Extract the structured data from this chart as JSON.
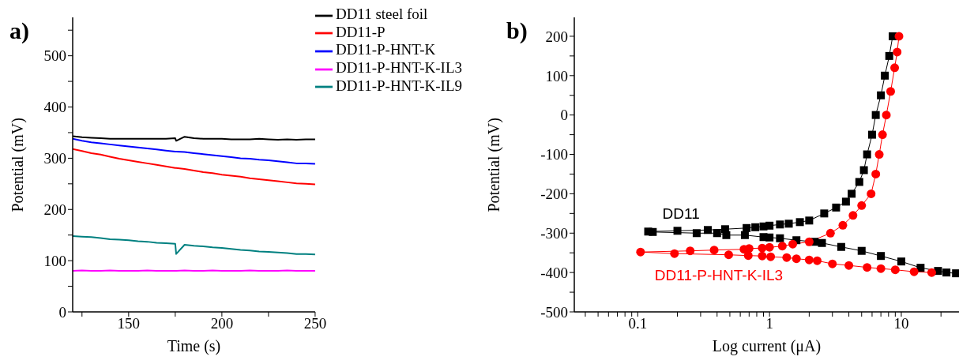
{
  "chart_data": [
    {
      "type": "line",
      "title": "a)",
      "xlabel": "Time (s)",
      "ylabel": "Potential (mV)",
      "legend": "top right",
      "x": [
        120,
        125,
        130,
        135,
        140,
        145,
        150,
        155,
        160,
        165,
        170,
        175,
        175.5,
        180,
        185,
        190,
        195,
        200,
        205,
        210,
        215,
        220,
        225,
        230,
        235,
        240,
        245,
        250
      ],
      "xlim": [
        120,
        250
      ],
      "xticks": [
        {
          "value": 125,
          "label": null
        },
        150,
        {
          "value": 175,
          "label": null
        },
        200,
        {
          "value": 225,
          "label": null
        },
        250
      ],
      "ylim": [
        0,
        575
      ],
      "yticks": [
        0,
        {
          "value": 50,
          "label": null
        },
        100,
        {
          "value": 150,
          "label": null
        },
        200,
        {
          "value": 250,
          "label": null
        },
        300,
        {
          "value": 350,
          "label": null
        },
        400,
        {
          "value": 450,
          "label": null
        },
        500,
        {
          "value": 550,
          "label": null
        }
      ],
      "series": [
        {
          "name": "DD11 steel foil",
          "color": "#000000",
          "values": [
            343,
            341,
            340,
            339,
            338,
            338,
            338,
            338,
            338,
            338,
            338,
            339,
            334,
            342,
            339,
            338,
            338,
            338,
            337,
            337,
            337,
            338,
            337,
            336,
            337,
            336,
            337,
            337
          ]
        },
        {
          "name": "DD11-P",
          "color": "#ff0000",
          "values": [
            318,
            314,
            310,
            307,
            303,
            299,
            296,
            293,
            290,
            287,
            284,
            281,
            281,
            279,
            276,
            273,
            271,
            268,
            266,
            264,
            261,
            259,
            257,
            255,
            253,
            251,
            250,
            249
          ]
        },
        {
          "name": "DD11-P-HNT-K",
          "color": "#0000ff",
          "values": [
            338,
            334,
            331,
            329,
            327,
            325,
            323,
            321,
            319,
            317,
            315,
            313,
            313,
            312,
            310,
            308,
            306,
            304,
            302,
            300,
            299,
            297,
            296,
            294,
            292,
            290,
            290,
            289
          ]
        },
        {
          "name": "DD11-P-HNT-K-IL3",
          "color": "#ff00ff",
          "values": [
            80,
            81,
            80,
            80,
            81,
            80,
            80,
            80,
            81,
            80,
            80,
            80,
            80,
            81,
            80,
            80,
            81,
            80,
            80,
            80,
            81,
            80,
            80,
            80,
            81,
            80,
            80,
            80
          ]
        },
        {
          "name": "DD11-P-HNT-K-IL9",
          "color": "#008080",
          "values": [
            148,
            147,
            146,
            144,
            142,
            141,
            140,
            138,
            137,
            135,
            134,
            133,
            113,
            131,
            129,
            128,
            126,
            125,
            123,
            121,
            120,
            118,
            117,
            116,
            115,
            113,
            113,
            112
          ]
        }
      ]
    },
    {
      "type": "line",
      "title": "b)",
      "xlabel": "Log current (μA)",
      "ylabel": "Potential (mV)",
      "log": "x",
      "legend": false,
      "xlim": [
        0.033,
        27.4
      ],
      "xticks": [
        {
          "value": 0.04,
          "label": null
        },
        {
          "value": 0.05,
          "label": null
        },
        {
          "value": 0.06,
          "label": null
        },
        {
          "value": 0.07,
          "label": null
        },
        {
          "value": 0.08,
          "label": null
        },
        {
          "value": 0.09,
          "label": null
        },
        0.1,
        {
          "value": 0.2,
          "label": null
        },
        {
          "value": 0.3,
          "label": null
        },
        {
          "value": 0.4,
          "label": null
        },
        {
          "value": 0.5,
          "label": null
        },
        {
          "value": 0.6,
          "label": null
        },
        {
          "value": 0.7,
          "label": null
        },
        {
          "value": 0.8,
          "label": null
        },
        {
          "value": 0.9,
          "label": null
        },
        1,
        {
          "value": 2,
          "label": null
        },
        {
          "value": 3,
          "label": null
        },
        {
          "value": 4,
          "label": null
        },
        {
          "value": 5,
          "label": null
        },
        {
          "value": 6,
          "label": null
        },
        {
          "value": 7,
          "label": null
        },
        {
          "value": 8,
          "label": null
        },
        {
          "value": 9,
          "label": null
        },
        10,
        {
          "value": 20,
          "label": null
        }
      ],
      "ylim": [
        -500,
        248
      ],
      "yticks": [
        -500,
        {
          "value": -450,
          "label": null
        },
        -400,
        {
          "value": -350,
          "label": null
        },
        -300,
        {
          "value": -250,
          "label": null
        },
        -200,
        {
          "value": -150,
          "label": null
        },
        -100,
        {
          "value": -50,
          "label": null
        },
        0,
        {
          "value": 50,
          "label": null
        },
        100,
        {
          "value": 150,
          "label": null
        },
        200
      ],
      "series": [
        {
          "name": "DD11",
          "color": "#000000",
          "marker": "square",
          "x": [
            26,
            22,
            19,
            14,
            10,
            7,
            5,
            3.5,
            2.5,
            2.2,
            1.6,
            1.2,
            1.0,
            0.9,
            0.65,
            0.47,
            0.4,
            0.28,
            0.13,
            0.12,
            0.2,
            0.34,
            0.46,
            0.67,
            0.78,
            0.9,
            1.0,
            1.2,
            1.4,
            1.7,
            2.0,
            2.6,
            3.2,
            3.8,
            4.2,
            4.8,
            5.2,
            5.5,
            6.0,
            6.4,
            7.0,
            7.5,
            8.1,
            8.6
          ],
          "values": [
            -402,
            -400,
            -396,
            -388,
            -372,
            -358,
            -345,
            -335,
            -325,
            -322,
            -318,
            -313,
            -311,
            -310,
            -305,
            -305,
            -300,
            -300,
            -297,
            -296,
            -294,
            -292,
            -290,
            -287,
            -285,
            -283,
            -281,
            -278,
            -276,
            -272,
            -268,
            -250,
            -235,
            -220,
            -200,
            -170,
            -140,
            -100,
            -50,
            0,
            50,
            100,
            150,
            200
          ]
        },
        {
          "name": "DD11-P-HNT-K-IL3",
          "color": "#ff0000",
          "marker": "circle",
          "x": [
            17,
            12.5,
            9,
            7,
            5.5,
            4,
            3,
            2.3,
            2,
            1.6,
            1.35,
            1.02,
            0.88,
            0.69,
            0.49,
            0.19,
            0.105,
            0.25,
            0.38,
            0.64,
            0.7,
            0.88,
            1.0,
            1.25,
            1.5,
            2.0,
            2.9,
            3.6,
            4.3,
            5.0,
            5.9,
            6.4,
            6.8,
            7.2,
            7.7,
            8.3,
            8.9,
            9.3,
            9.6
          ],
          "values": [
            -400,
            -398,
            -393,
            -390,
            -387,
            -382,
            -378,
            -370,
            -368,
            -365,
            -362,
            -360,
            -358,
            -357,
            -355,
            -352,
            -348,
            -345,
            -343,
            -341,
            -339,
            -338,
            -336,
            -333,
            -328,
            -322,
            -300,
            -280,
            -255,
            -230,
            -200,
            -150,
            -100,
            -50,
            0,
            60,
            120,
            160,
            200
          ]
        }
      ]
    }
  ]
}
